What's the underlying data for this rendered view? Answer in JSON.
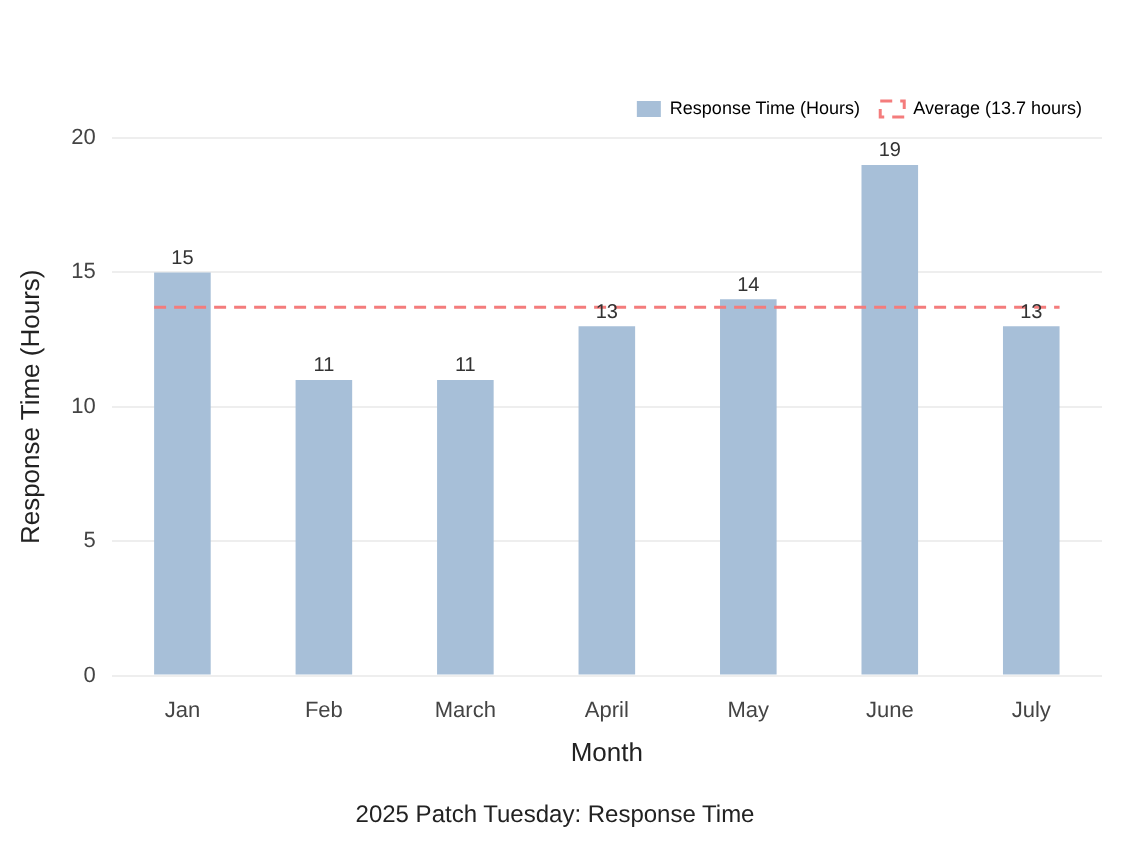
{
  "chart_data": {
    "type": "bar",
    "title": "2025 Patch Tuesday: Response Time",
    "xlabel": "Month",
    "ylabel": "Response Time (Hours)",
    "categories": [
      "Jan",
      "Feb",
      "March",
      "April",
      "May",
      "June",
      "July"
    ],
    "series": [
      {
        "name": "Response Time (Hours)",
        "color": "#a7bfd8",
        "values": [
          15,
          11,
          11,
          13,
          14,
          19,
          13
        ]
      }
    ],
    "ylim": [
      0,
      20
    ],
    "yticks": [
      0,
      5,
      10,
      15,
      20
    ],
    "grid": "y",
    "legend": "top right",
    "data_labels": true,
    "ref_lines": [
      {
        "axis": "y",
        "value": 13.7,
        "label": "Average (13.7 hours)",
        "color": "#f47c7c",
        "line_style": "dashed"
      }
    ]
  }
}
